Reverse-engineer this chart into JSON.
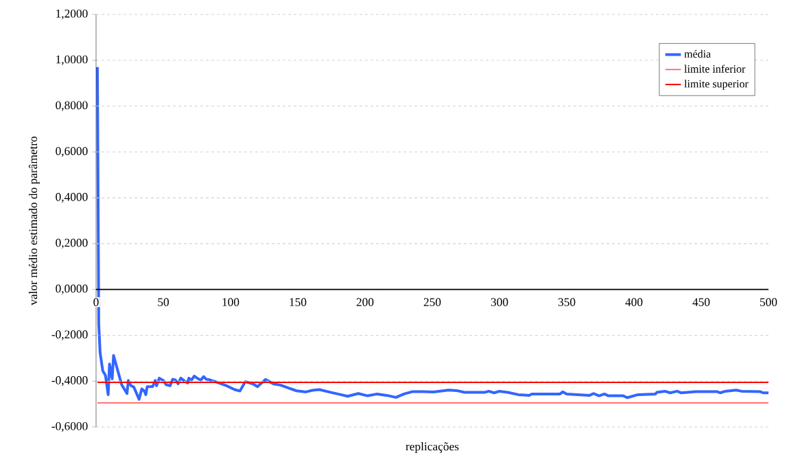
{
  "chart_data": {
    "type": "line",
    "xlabel": "replicações",
    "ylabel": "valor médio estimado do parâmetro",
    "xlim": [
      0,
      500
    ],
    "xticks": [
      0,
      50,
      100,
      150,
      200,
      250,
      300,
      350,
      400,
      450,
      500
    ],
    "ylim": [
      -0.6,
      1.2
    ],
    "yticks": [
      {
        "value": -0.6,
        "label": "-0,6000"
      },
      {
        "value": -0.4,
        "label": "-0,4000"
      },
      {
        "value": -0.2,
        "label": "-0,2000"
      },
      {
        "value": 0,
        "label": "0,0000"
      },
      {
        "value": 0.2,
        "label": "0,2000"
      },
      {
        "value": 0.4,
        "label": "0,4000"
      },
      {
        "value": 0.6,
        "label": "0,6000"
      },
      {
        "value": 0.8,
        "label": "0,8000"
      },
      {
        "value": 1.0,
        "label": "1,0000"
      },
      {
        "value": 1.2,
        "label": "1,2000"
      }
    ],
    "grid": "y",
    "legend": "top right",
    "marker": "none",
    "line_style": "solid",
    "series": [
      {
        "name": "média",
        "color": "#3366ff",
        "x": [
          1,
          2,
          3,
          5,
          7,
          9,
          10,
          12,
          13,
          19,
          22,
          23,
          24,
          26,
          28,
          32,
          34,
          36,
          37,
          38,
          42,
          44,
          45,
          47,
          50,
          52,
          55,
          57,
          59,
          61,
          63,
          66,
          68,
          69,
          71,
          73,
          76,
          78,
          80,
          82,
          85,
          90,
          97,
          103,
          107,
          111,
          117,
          120,
          126,
          132,
          137,
          143,
          149,
          156,
          161,
          166,
          173,
          182,
          187,
          195,
          202,
          209,
          216,
          223,
          229,
          235,
          243,
          251,
          262,
          268,
          274,
          289,
          292,
          296,
          300,
          306,
          314,
          322,
          324,
          345,
          347,
          350,
          367,
          370,
          374,
          378,
          381,
          392,
          395,
          403,
          416,
          417,
          423,
          427,
          432,
          435,
          446,
          462,
          464,
          468,
          476,
          480,
          494,
          496,
          500
        ],
        "values": [
          0.97,
          -0.15,
          -0.276,
          -0.355,
          -0.375,
          -0.459,
          -0.325,
          -0.39,
          -0.288,
          -0.415,
          -0.444,
          -0.454,
          -0.397,
          -0.42,
          -0.425,
          -0.479,
          -0.434,
          -0.444,
          -0.459,
          -0.424,
          -0.424,
          -0.397,
          -0.42,
          -0.387,
          -0.397,
          -0.415,
          -0.42,
          -0.392,
          -0.395,
          -0.412,
          -0.387,
          -0.4,
          -0.408,
          -0.387,
          -0.395,
          -0.378,
          -0.39,
          -0.395,
          -0.38,
          -0.392,
          -0.395,
          -0.405,
          -0.42,
          -0.437,
          -0.443,
          -0.402,
          -0.413,
          -0.424,
          -0.393,
          -0.412,
          -0.417,
          -0.43,
          -0.442,
          -0.447,
          -0.44,
          -0.437,
          -0.447,
          -0.459,
          -0.466,
          -0.454,
          -0.464,
          -0.456,
          -0.462,
          -0.471,
          -0.456,
          -0.446,
          -0.446,
          -0.447,
          -0.439,
          -0.441,
          -0.449,
          -0.449,
          -0.444,
          -0.451,
          -0.444,
          -0.449,
          -0.459,
          -0.462,
          -0.456,
          -0.456,
          -0.447,
          -0.456,
          -0.462,
          -0.454,
          -0.464,
          -0.456,
          -0.464,
          -0.464,
          -0.472,
          -0.459,
          -0.456,
          -0.449,
          -0.444,
          -0.451,
          -0.444,
          -0.451,
          -0.446,
          -0.446,
          -0.451,
          -0.444,
          -0.439,
          -0.444,
          -0.446,
          -0.451,
          -0.451
        ]
      },
      {
        "name": "limite inferior",
        "color": "#ff6060",
        "x": [
          1,
          500
        ],
        "values": [
          -0.495,
          -0.495
        ]
      },
      {
        "name": "limite superior",
        "color": "#ff0000",
        "x": [
          1,
          500
        ],
        "values": [
          -0.405,
          -0.405
        ]
      }
    ]
  }
}
